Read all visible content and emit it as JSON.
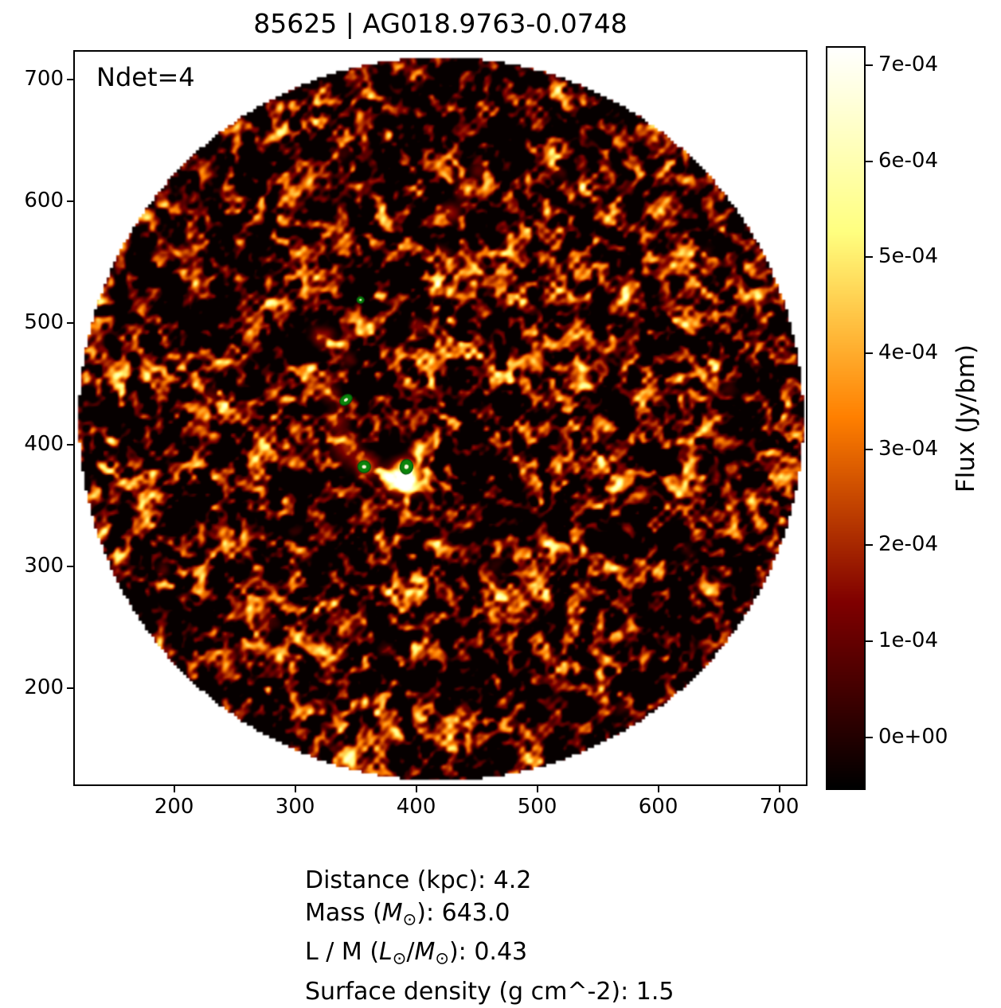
{
  "figure": {
    "title": "85625 | AG018.9763-0.0748",
    "annotation": "Ndet=4"
  },
  "axes": {
    "xlim": [
      118,
      722
    ],
    "ylim": [
      121,
      723
    ],
    "xticks": [
      200,
      300,
      400,
      500,
      600,
      700
    ],
    "yticks": [
      200,
      300,
      400,
      500,
      600,
      700
    ]
  },
  "colorbar": {
    "label": "Flux (Jy/bm)",
    "vmin": -5.5e-05,
    "vmax": 0.00072,
    "colormap": "afmhot",
    "ticks": [
      {
        "value": 0,
        "label": "0e+00"
      },
      {
        "value": 0.0001,
        "label": "1e-04"
      },
      {
        "value": 0.0002,
        "label": "2e-04"
      },
      {
        "value": 0.0003,
        "label": "3e-04"
      },
      {
        "value": 0.0004,
        "label": "4e-04"
      },
      {
        "value": 0.0005,
        "label": "5e-04"
      },
      {
        "value": 0.0006,
        "label": "6e-04"
      },
      {
        "value": 0.0007,
        "label": "7e-04"
      }
    ]
  },
  "info_lines": [
    [
      {
        "t": "Distance (kpc): 4.2"
      }
    ],
    [
      {
        "t": "Mass ("
      },
      {
        "t": "M",
        "style": "i"
      },
      {
        "t": "⊙",
        "style": "sub"
      },
      {
        "t": "): 643.0"
      }
    ],
    [
      {
        "t": "L / M ("
      },
      {
        "t": "L",
        "style": "i"
      },
      {
        "t": "⊙",
        "style": "sub"
      },
      {
        "t": "/"
      },
      {
        "t": "M",
        "style": "i"
      },
      {
        "t": "⊙",
        "style": "sub"
      },
      {
        "t": "): 0.43"
      }
    ],
    [
      {
        "t": "Surface density (g cm^-2): 1.5"
      }
    ]
  ],
  "chart_data": {
    "type": "heatmap",
    "title": "85625 | AG018.9763-0.0748",
    "annotation": "Ndet=4",
    "n_detections": 4,
    "x_range": [
      118,
      722
    ],
    "y_range": [
      121,
      723
    ],
    "x_ticks": [
      200,
      300,
      400,
      500,
      600,
      700
    ],
    "y_ticks": [
      200,
      300,
      400,
      500,
      600,
      700
    ],
    "grid": false,
    "colormap": "afmhot",
    "flux_range_jy_per_beam": [
      -5.5e-05,
      0.00072
    ],
    "colorbar_label": "Flux (Jy/bm)",
    "colorbar_tick_labels": [
      "0e+00",
      "1e-04",
      "2e-04",
      "3e-04",
      "4e-04",
      "5e-04",
      "6e-04",
      "7e-04"
    ],
    "field_circle": {
      "cx": 420,
      "cy": 418,
      "r": 299
    },
    "marker_color": "#0b840b",
    "detections": [
      {
        "x": 354,
        "y": 519,
        "rx": 3.0,
        "ry": 2.7,
        "angle": 0
      },
      {
        "x": 342,
        "y": 437,
        "rx": 5.6,
        "ry": 3.9,
        "angle": -35
      },
      {
        "x": 357,
        "y": 382,
        "rx": 5.3,
        "ry": 4.9,
        "angle": 0
      },
      {
        "x": 392,
        "y": 382,
        "rx": 5.3,
        "ry": 6.1,
        "angle": 12
      }
    ],
    "bright_regions": [
      [
        392,
        375,
        9,
        0.9
      ],
      [
        381,
        370,
        6,
        0.5
      ],
      [
        358,
        383,
        7,
        0.5
      ],
      [
        341,
        398,
        8,
        0.33
      ],
      [
        334,
        420,
        6,
        0.28
      ],
      [
        329,
        443,
        6,
        0.22
      ],
      [
        322,
        489,
        7,
        0.3
      ],
      [
        345,
        471,
        5,
        0.18
      ],
      [
        402,
        498,
        5,
        0.26
      ],
      [
        417,
        528,
        5,
        0.22
      ],
      [
        422,
        558,
        5,
        0.22
      ],
      [
        428,
        592,
        6,
        0.3
      ],
      [
        438,
        609,
        5,
        0.26
      ],
      [
        451,
        626,
        5,
        0.2
      ],
      [
        230,
        441,
        5,
        0.2
      ],
      [
        180,
        360,
        5,
        0.18
      ],
      [
        281,
        254,
        5,
        0.16
      ],
      [
        374,
        232,
        5,
        0.15
      ],
      [
        528,
        266,
        5,
        0.15
      ],
      [
        578,
        523,
        5,
        0.14
      ],
      [
        518,
        624,
        5,
        0.16
      ],
      [
        658,
        446,
        5,
        0.13
      ],
      [
        570,
        184,
        5,
        0.14
      ],
      [
        466,
        301,
        5,
        0.12
      ],
      [
        624,
        313,
        5,
        0.12
      ],
      [
        640,
        560,
        5,
        0.12
      ],
      [
        300,
        330,
        5,
        0.12
      ],
      [
        205,
        470,
        5,
        0.14
      ],
      [
        430,
        150,
        5,
        0.12
      ],
      [
        340,
        640,
        5,
        0.12
      ],
      [
        190,
        298,
        4,
        0.18
      ]
    ],
    "source_properties": {
      "distance_kpc": 4.2,
      "mass_msun": 643.0,
      "l_over_m_lsun_per_msun": 0.43,
      "surface_density_g_cm2": 1.5
    }
  }
}
